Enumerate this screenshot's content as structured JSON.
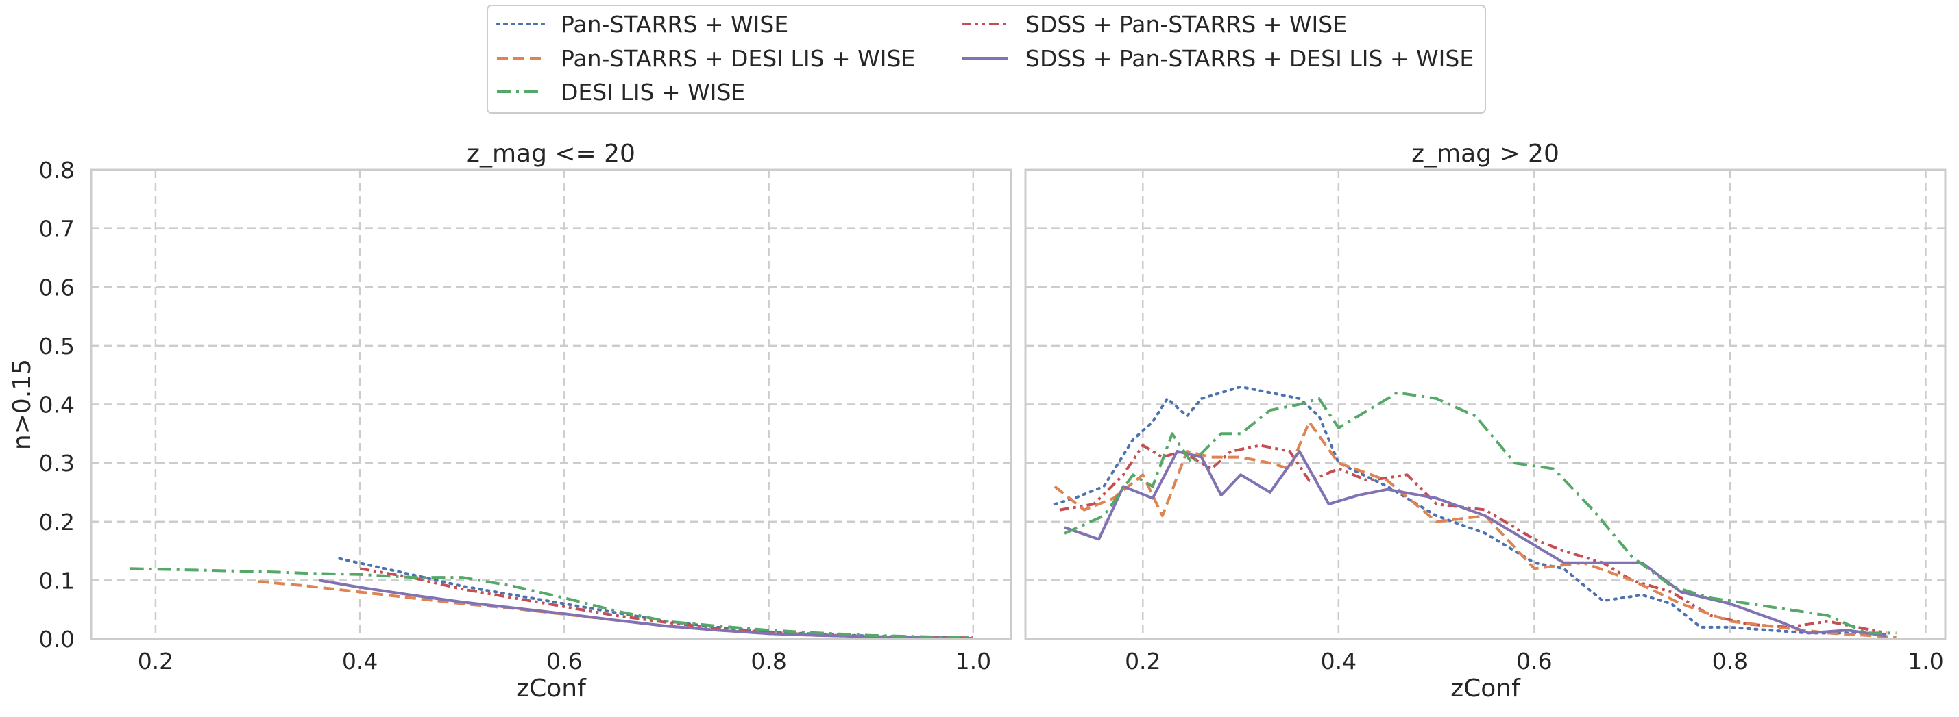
{
  "chart_data": {
    "type": "line",
    "ylabel": "n>0.15",
    "ylim": [
      0,
      0.8
    ],
    "yticks": [
      "0.0",
      "0.1",
      "0.2",
      "0.3",
      "0.4",
      "0.5",
      "0.6",
      "0.7",
      "0.8"
    ],
    "grid": true,
    "grid_style": "dashed",
    "legend_placement": "top-center",
    "legend": [
      {
        "name": "Pan-STARRS + WISE",
        "color": "#4c72b0",
        "dash": "dotted"
      },
      {
        "name": "SDSS + Pan-STARRS + WISE",
        "color": "#c44e52",
        "dash": "dashdotdot"
      },
      {
        "name": "Pan-STARRS + DESI LIS + WISE",
        "color": "#dd8452",
        "dash": "dashed"
      },
      {
        "name": "SDSS + Pan-STARRS + DESI LIS + WISE",
        "color": "#8172b3",
        "dash": "solid"
      },
      {
        "name": "DESI LIS + WISE",
        "color": "#55a868",
        "dash": "dashdot"
      }
    ],
    "panels": [
      {
        "title": "z_mag <= 20",
        "xlabel": "zConf",
        "xlim": [
          0.137,
          1.037
        ],
        "xticks": [
          "0.2",
          "0.4",
          "0.6",
          "0.8",
          "1.0"
        ],
        "series": [
          {
            "name": "Pan-STARRS + WISE",
            "x": [
              0.38,
              0.45,
              0.5,
              0.55,
              0.6,
              0.65,
              0.7,
              0.75,
              0.8,
              0.85,
              0.9,
              0.95,
              1.0
            ],
            "y": [
              0.137,
              0.11,
              0.09,
              0.075,
              0.06,
              0.045,
              0.03,
              0.02,
              0.012,
              0.008,
              0.005,
              0.003,
              0.002
            ]
          },
          {
            "name": "SDSS + Pan-STARRS + WISE",
            "x": [
              0.4,
              0.45,
              0.5,
              0.55,
              0.6,
              0.65,
              0.7,
              0.75,
              0.8,
              0.85,
              0.9,
              0.95,
              1.0
            ],
            "y": [
              0.12,
              0.105,
              0.085,
              0.07,
              0.055,
              0.04,
              0.028,
              0.018,
              0.011,
              0.007,
              0.004,
              0.003,
              0.002
            ]
          },
          {
            "name": "Pan-STARRS + DESI LIS + WISE",
            "x": [
              0.3,
              0.35,
              0.4,
              0.45,
              0.5,
              0.55,
              0.6,
              0.65,
              0.7,
              0.75,
              0.8,
              0.85,
              0.9,
              0.95,
              1.0
            ],
            "y": [
              0.098,
              0.09,
              0.08,
              0.07,
              0.06,
              0.052,
              0.042,
              0.032,
              0.022,
              0.015,
              0.009,
              0.006,
              0.004,
              0.002,
              0.001
            ]
          },
          {
            "name": "SDSS + Pan-STARRS + DESI LIS + WISE",
            "x": [
              0.36,
              0.4,
              0.45,
              0.5,
              0.55,
              0.6,
              0.65,
              0.7,
              0.75,
              0.8,
              0.85,
              0.9,
              0.95,
              1.0
            ],
            "y": [
              0.1,
              0.088,
              0.075,
              0.063,
              0.053,
              0.043,
              0.032,
              0.022,
              0.015,
              0.009,
              0.006,
              0.004,
              0.002,
              0.001
            ]
          },
          {
            "name": "DESI LIS + WISE",
            "x": [
              0.175,
              0.25,
              0.3,
              0.35,
              0.4,
              0.45,
              0.5,
              0.55,
              0.6,
              0.65,
              0.7,
              0.75,
              0.8,
              0.85,
              0.9,
              0.95,
              1.0
            ],
            "y": [
              0.12,
              0.117,
              0.115,
              0.112,
              0.11,
              0.105,
              0.105,
              0.09,
              0.07,
              0.048,
              0.03,
              0.022,
              0.015,
              0.01,
              0.006,
              0.004,
              0.002
            ]
          }
        ]
      },
      {
        "title": "z_mag > 20",
        "xlabel": "zConf",
        "xlim": [
          0.08,
          1.02
        ],
        "xticks": [
          "0.2",
          "0.4",
          "0.6",
          "0.8",
          "1.0"
        ],
        "series": [
          {
            "name": "Pan-STARRS + WISE",
            "x": [
              0.11,
              0.13,
              0.16,
              0.19,
              0.21,
              0.225,
              0.245,
              0.26,
              0.28,
              0.3,
              0.33,
              0.36,
              0.38,
              0.4,
              0.45,
              0.5,
              0.55,
              0.6,
              0.63,
              0.67,
              0.71,
              0.74,
              0.77,
              0.8,
              0.84,
              0.88,
              0.93,
              0.96
            ],
            "y": [
              0.23,
              0.24,
              0.26,
              0.34,
              0.37,
              0.41,
              0.38,
              0.41,
              0.42,
              0.43,
              0.42,
              0.41,
              0.38,
              0.3,
              0.26,
              0.21,
              0.18,
              0.13,
              0.12,
              0.065,
              0.075,
              0.06,
              0.02,
              0.02,
              0.015,
              0.01,
              0.01,
              0.008
            ]
          },
          {
            "name": "SDSS + Pan-STARRS + WISE",
            "x": [
              0.115,
              0.15,
              0.18,
              0.2,
              0.22,
              0.24,
              0.27,
              0.29,
              0.32,
              0.35,
              0.37,
              0.4,
              0.43,
              0.47,
              0.5,
              0.55,
              0.6,
              0.63,
              0.67,
              0.7,
              0.74,
              0.78,
              0.82,
              0.86,
              0.9,
              0.96
            ],
            "y": [
              0.22,
              0.23,
              0.28,
              0.33,
              0.31,
              0.32,
              0.29,
              0.32,
              0.33,
              0.32,
              0.27,
              0.29,
              0.27,
              0.28,
              0.23,
              0.22,
              0.17,
              0.15,
              0.13,
              0.1,
              0.08,
              0.04,
              0.025,
              0.02,
              0.03,
              0.01
            ]
          },
          {
            "name": "Pan-STARRS + DESI LIS + WISE",
            "x": [
              0.11,
              0.14,
              0.17,
              0.2,
              0.22,
              0.245,
              0.27,
              0.3,
              0.33,
              0.35,
              0.37,
              0.4,
              0.45,
              0.5,
              0.55,
              0.6,
              0.65,
              0.7,
              0.75,
              0.8,
              0.85,
              0.9,
              0.95,
              0.97
            ],
            "y": [
              0.26,
              0.22,
              0.24,
              0.28,
              0.21,
              0.32,
              0.31,
              0.31,
              0.3,
              0.29,
              0.37,
              0.3,
              0.27,
              0.2,
              0.21,
              0.12,
              0.13,
              0.1,
              0.06,
              0.03,
              0.02,
              0.01,
              0.005,
              0.003
            ]
          },
          {
            "name": "SDSS + Pan-STARRS + DESI LIS + WISE",
            "x": [
              0.12,
              0.155,
              0.18,
              0.21,
              0.235,
              0.26,
              0.28,
              0.3,
              0.33,
              0.36,
              0.39,
              0.42,
              0.45,
              0.5,
              0.55,
              0.6,
              0.63,
              0.67,
              0.71,
              0.75,
              0.8,
              0.85,
              0.88,
              0.92,
              0.96
            ],
            "y": [
              0.19,
              0.17,
              0.26,
              0.24,
              0.32,
              0.31,
              0.245,
              0.28,
              0.25,
              0.32,
              0.23,
              0.245,
              0.255,
              0.24,
              0.21,
              0.16,
              0.13,
              0.13,
              0.13,
              0.08,
              0.06,
              0.03,
              0.01,
              0.015,
              0.005
            ]
          },
          {
            "name": "DESI LIS + WISE",
            "x": [
              0.12,
              0.16,
              0.19,
              0.21,
              0.23,
              0.25,
              0.28,
              0.3,
              0.33,
              0.36,
              0.38,
              0.4,
              0.43,
              0.46,
              0.5,
              0.54,
              0.58,
              0.62,
              0.66,
              0.7,
              0.74,
              0.78,
              0.82,
              0.86,
              0.9,
              0.94,
              0.97
            ],
            "y": [
              0.18,
              0.21,
              0.28,
              0.26,
              0.35,
              0.3,
              0.35,
              0.35,
              0.39,
              0.4,
              0.41,
              0.36,
              0.39,
              0.42,
              0.41,
              0.38,
              0.3,
              0.29,
              0.22,
              0.14,
              0.09,
              0.07,
              0.06,
              0.05,
              0.04,
              0.01,
              0.01
            ]
          }
        ]
      }
    ]
  }
}
